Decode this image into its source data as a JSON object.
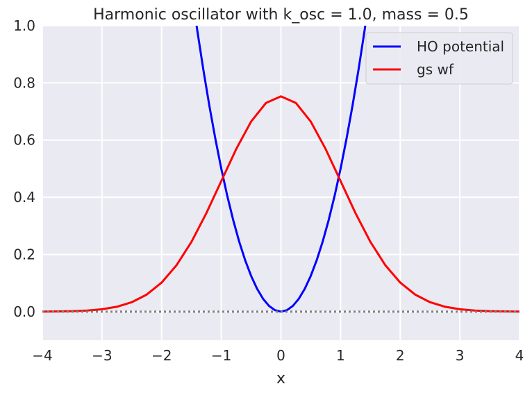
{
  "chart_data": {
    "type": "line",
    "title": "Harmonic oscillator with k_osc = 1.0, mass = 0.5",
    "xlabel": "x",
    "ylabel": "",
    "xlim": [
      -4,
      4
    ],
    "ylim": [
      -0.1,
      1.0
    ],
    "x_ticks": [
      -4,
      -3,
      -2,
      -1,
      0,
      1,
      2,
      3,
      4
    ],
    "x_tick_labels": [
      "−4",
      "−3",
      "−2",
      "−1",
      "0",
      "1",
      "2",
      "3",
      "4"
    ],
    "y_ticks": [
      0.0,
      0.2,
      0.4,
      0.6,
      0.8,
      1.0
    ],
    "y_tick_labels": [
      "0.0",
      "0.2",
      "0.4",
      "0.6",
      "0.8",
      "1.0"
    ],
    "grid": true,
    "legend_position": "top-right",
    "background_color": "#eaeaf2",
    "grid_color": "#ffffff",
    "series": [
      {
        "name": "HO potential",
        "color": "#0000ff",
        "x": [
          -1.5,
          -1.4,
          -1.3,
          -1.2,
          -1.1,
          -1.0,
          -0.9,
          -0.8,
          -0.7,
          -0.6,
          -0.5,
          -0.4,
          -0.3,
          -0.2,
          -0.1,
          0.0,
          0.1,
          0.2,
          0.3,
          0.4,
          0.5,
          0.6,
          0.7,
          0.8,
          0.9,
          1.0,
          1.1,
          1.2,
          1.3,
          1.4,
          1.5
        ],
        "y": [
          1.125,
          0.98,
          0.845,
          0.72,
          0.605,
          0.5,
          0.405,
          0.32,
          0.245,
          0.18,
          0.125,
          0.08,
          0.045,
          0.02,
          0.005,
          0.0,
          0.005,
          0.02,
          0.045,
          0.08,
          0.125,
          0.18,
          0.245,
          0.32,
          0.405,
          0.5,
          0.605,
          0.72,
          0.845,
          0.98,
          1.125
        ]
      },
      {
        "name": "gs wf",
        "color": "#ff0000",
        "x": [
          -4.0,
          -3.75,
          -3.5,
          -3.25,
          -3.0,
          -2.75,
          -2.5,
          -2.25,
          -2.0,
          -1.75,
          -1.5,
          -1.25,
          -1.0,
          -0.75,
          -0.5,
          -0.25,
          0.0,
          0.25,
          0.5,
          0.75,
          1.0,
          1.25,
          1.5,
          1.75,
          2.0,
          2.25,
          2.5,
          2.75,
          3.0,
          3.25,
          3.5,
          3.75,
          4.0
        ],
        "y": [
          0.0003,
          0.0007,
          0.0016,
          0.0038,
          0.0083,
          0.0171,
          0.033,
          0.0597,
          0.1016,
          0.1625,
          0.2441,
          0.3446,
          0.4567,
          0.5685,
          0.6647,
          0.7299,
          0.753,
          0.7299,
          0.6647,
          0.5685,
          0.4567,
          0.3446,
          0.2441,
          0.1625,
          0.1016,
          0.0597,
          0.033,
          0.0171,
          0.0083,
          0.0038,
          0.0016,
          0.0007,
          0.0003
        ]
      },
      {
        "name": "",
        "color": "#808080",
        "style": "dotted",
        "x": [
          -4.0,
          4.0
        ],
        "y": [
          0.0,
          0.0
        ]
      }
    ]
  }
}
